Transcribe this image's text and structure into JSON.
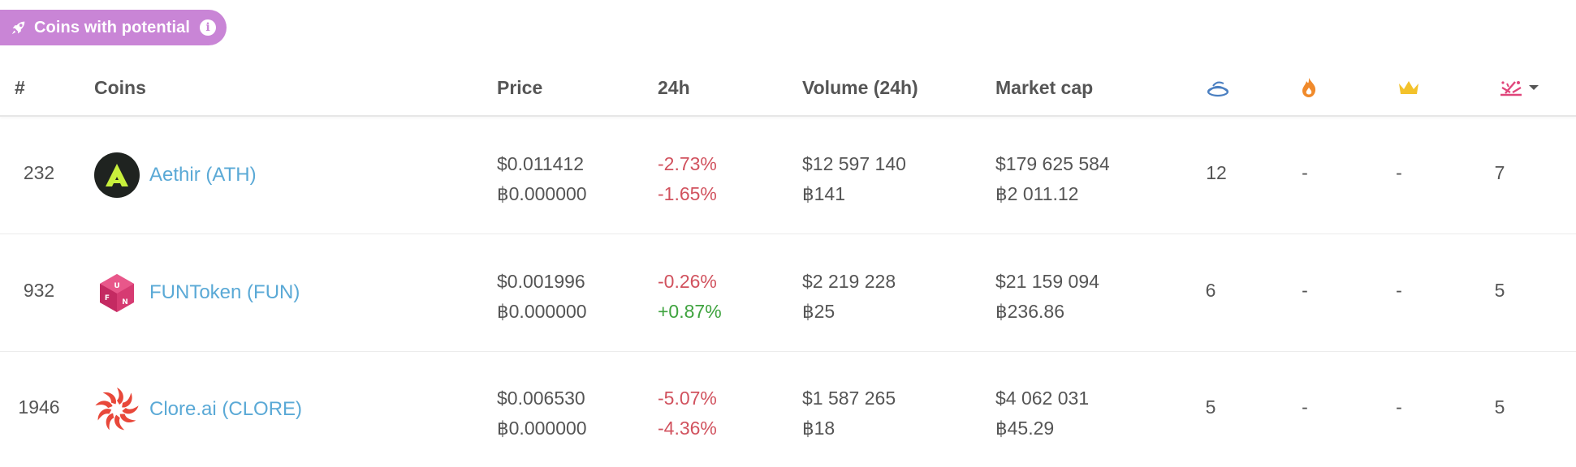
{
  "badge": {
    "label": "Coins with potential",
    "info_icon": "info-icon",
    "icon": "rocket-icon",
    "color": "#c985d6"
  },
  "header": {
    "rank": "#",
    "coins": "Coins",
    "price": "Price",
    "change": "24h",
    "volume": "Volume (24h)",
    "market_cap": "Market cap",
    "icons": [
      "bowl-icon",
      "flame-icon",
      "crown-icon",
      "sparkle-icon",
      "caret-down-icon"
    ]
  },
  "rows": [
    {
      "rank": "232",
      "name": "Aethir (ATH)",
      "logo": "aethir-logo",
      "price_usd": "$0.011412",
      "price_btc": "฿0.000000",
      "change_usd": "-2.73%",
      "change_btc": "-1.65%",
      "volume_usd": "$12 597 140",
      "volume_btc": "฿141",
      "mcap_usd": "$179 625 584",
      "mcap_btc": "฿2 011.12",
      "stat1": "12",
      "stat2": "-",
      "stat3": "-",
      "stat4": "7"
    },
    {
      "rank": "932",
      "name": "FUNToken (FUN)",
      "logo": "funtoken-logo",
      "price_usd": "$0.001996",
      "price_btc": "฿0.000000",
      "change_usd": "-0.26%",
      "change_btc": "+0.87%",
      "volume_usd": "$2 219 228",
      "volume_btc": "฿25",
      "mcap_usd": "$21 159 094",
      "mcap_btc": "฿236.86",
      "stat1": "6",
      "stat2": "-",
      "stat3": "-",
      "stat4": "5"
    },
    {
      "rank": "1946",
      "name": "Clore.ai (CLORE)",
      "logo": "clore-logo",
      "price_usd": "$0.006530",
      "price_btc": "฿0.000000",
      "change_usd": "-5.07%",
      "change_btc": "-4.36%",
      "volume_usd": "$1 587 265",
      "volume_btc": "฿18",
      "mcap_usd": "$4 062 031",
      "mcap_btc": "฿45.29",
      "stat1": "5",
      "stat2": "-",
      "stat3": "-",
      "stat4": "5"
    }
  ],
  "colors": {
    "link": "#5aa9d6",
    "negative": "#d1525e",
    "positive": "#3fa33f"
  }
}
